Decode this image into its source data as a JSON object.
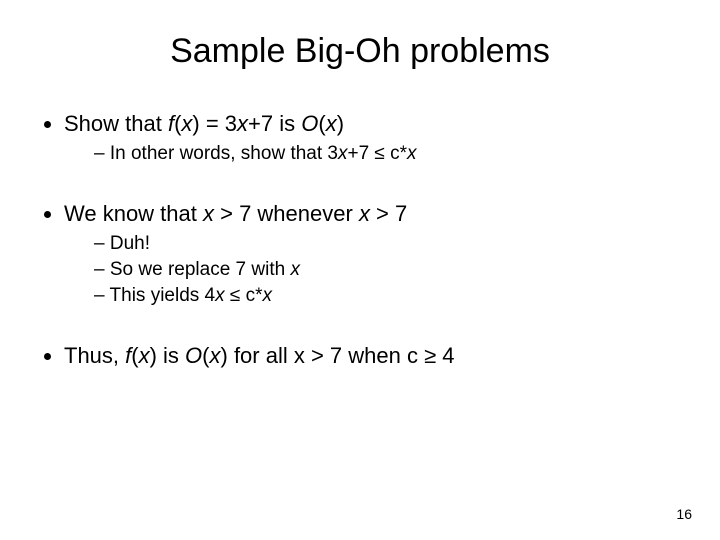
{
  "title": {
    "text": "Sample Big-Oh problems",
    "fontsize": 34
  },
  "body_fontsize_l1": 22,
  "body_fontsize_l2": 19,
  "page_number": {
    "text": "16",
    "fontsize": 14
  },
  "block1": {
    "l1_parts": [
      "Show that ",
      "f",
      "(",
      "x",
      ") = 3",
      "x",
      "+7 is ",
      "O",
      "(",
      "x",
      ")"
    ],
    "sub": [
      {
        "parts": [
          "In other words, show that 3",
          "x",
          "+7 ≤ c*",
          "x"
        ]
      }
    ]
  },
  "block2": {
    "l1_parts": [
      "We know that ",
      "x",
      " > 7 whenever ",
      "x",
      " > 7"
    ],
    "sub": [
      {
        "parts": [
          "Duh!"
        ]
      },
      {
        "parts": [
          "So we replace 7 with ",
          "x"
        ]
      },
      {
        "parts": [
          "This yields 4",
          "x",
          " ≤ c*",
          "x"
        ]
      }
    ]
  },
  "block3": {
    "l1_parts": [
      "Thus, ",
      "f",
      "(",
      "x",
      ") is ",
      "O",
      "(",
      "x",
      ") for all x > 7 when c ≥ 4"
    ]
  }
}
